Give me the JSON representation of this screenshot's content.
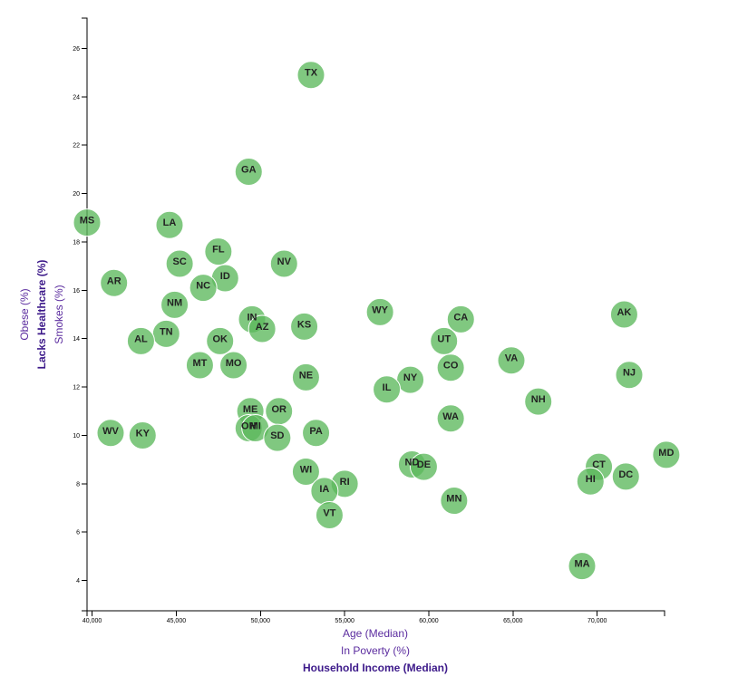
{
  "chart_data": {
    "type": "scatter",
    "x_label_options": [
      {
        "label": "Age (Median)",
        "active": false
      },
      {
        "label": "In Poverty (%)",
        "active": false
      },
      {
        "label": "Household Income (Median)",
        "active": true
      }
    ],
    "y_label_options": [
      {
        "label": "Obese (%)",
        "active": false
      },
      {
        "label": "Smokes (%)",
        "active": false
      },
      {
        "label": "Lacks Healthcare (%)",
        "active": true
      }
    ],
    "xlim": [
      39700,
      74000
    ],
    "ylim": [
      2.75,
      27.25
    ],
    "x_ticks": [
      {
        "value": 40000,
        "label": "40,000"
      },
      {
        "value": 45000,
        "label": "45,000"
      },
      {
        "value": 50000,
        "label": "50,000"
      },
      {
        "value": 55000,
        "label": "55,000"
      },
      {
        "value": 60000,
        "label": "60,000"
      },
      {
        "value": 65000,
        "label": "65,000"
      },
      {
        "value": 70000,
        "label": "70,000"
      }
    ],
    "y_ticks": [
      {
        "value": 4,
        "label": "4"
      },
      {
        "value": 6,
        "label": "6"
      },
      {
        "value": 8,
        "label": "8"
      },
      {
        "value": 10,
        "label": "10"
      },
      {
        "value": 12,
        "label": "12"
      },
      {
        "value": 14,
        "label": "14"
      },
      {
        "value": 16,
        "label": "16"
      },
      {
        "value": 18,
        "label": "18"
      },
      {
        "value": 20,
        "label": "20"
      },
      {
        "value": 22,
        "label": "22"
      },
      {
        "value": 24,
        "label": "24"
      },
      {
        "value": 26,
        "label": "26"
      }
    ],
    "marker_color": "#5cb85c",
    "points": [
      {
        "abbr": "TX",
        "x": 53000,
        "y": 24.9
      },
      {
        "abbr": "GA",
        "x": 49300,
        "y": 20.9
      },
      {
        "abbr": "MS",
        "x": 39700,
        "y": 18.8
      },
      {
        "abbr": "LA",
        "x": 44600,
        "y": 18.7
      },
      {
        "abbr": "FL",
        "x": 47500,
        "y": 17.6
      },
      {
        "abbr": "SC",
        "x": 45200,
        "y": 17.1
      },
      {
        "abbr": "NV",
        "x": 51400,
        "y": 17.1
      },
      {
        "abbr": "AR",
        "x": 41300,
        "y": 16.3
      },
      {
        "abbr": "ID",
        "x": 47900,
        "y": 16.5
      },
      {
        "abbr": "NC",
        "x": 46600,
        "y": 16.1
      },
      {
        "abbr": "NM",
        "x": 44900,
        "y": 15.4
      },
      {
        "abbr": "WY",
        "x": 57100,
        "y": 15.1
      },
      {
        "abbr": "AK",
        "x": 71600,
        "y": 15.0
      },
      {
        "abbr": "IN",
        "x": 49500,
        "y": 14.8
      },
      {
        "abbr": "CA",
        "x": 61900,
        "y": 14.8
      },
      {
        "abbr": "AZ",
        "x": 50100,
        "y": 14.4
      },
      {
        "abbr": "KS",
        "x": 52600,
        "y": 14.5
      },
      {
        "abbr": "TN",
        "x": 44400,
        "y": 14.2
      },
      {
        "abbr": "AL",
        "x": 42900,
        "y": 13.9
      },
      {
        "abbr": "OK",
        "x": 47600,
        "y": 13.9
      },
      {
        "abbr": "UT",
        "x": 60900,
        "y": 13.9
      },
      {
        "abbr": "VA",
        "x": 64900,
        "y": 13.1
      },
      {
        "abbr": "MT",
        "x": 46400,
        "y": 12.9
      },
      {
        "abbr": "MO",
        "x": 48400,
        "y": 12.9
      },
      {
        "abbr": "CO",
        "x": 61300,
        "y": 12.8
      },
      {
        "abbr": "NJ",
        "x": 71900,
        "y": 12.5
      },
      {
        "abbr": "NE",
        "x": 52700,
        "y": 12.4
      },
      {
        "abbr": "NY",
        "x": 58900,
        "y": 12.3
      },
      {
        "abbr": "IL",
        "x": 57500,
        "y": 11.9
      },
      {
        "abbr": "NH",
        "x": 66500,
        "y": 11.4
      },
      {
        "abbr": "ME",
        "x": 49400,
        "y": 11.0
      },
      {
        "abbr": "OR",
        "x": 51100,
        "y": 11.0
      },
      {
        "abbr": "WA",
        "x": 61300,
        "y": 10.7
      },
      {
        "abbr": "OH",
        "x": 49300,
        "y": 10.3
      },
      {
        "abbr": "MI",
        "x": 49700,
        "y": 10.3
      },
      {
        "abbr": "WV",
        "x": 41100,
        "y": 10.1
      },
      {
        "abbr": "KY",
        "x": 43000,
        "y": 10.0
      },
      {
        "abbr": "PA",
        "x": 53300,
        "y": 10.1
      },
      {
        "abbr": "SD",
        "x": 51000,
        "y": 9.9
      },
      {
        "abbr": "MD",
        "x": 74100,
        "y": 9.2
      },
      {
        "abbr": "ND",
        "x": 59000,
        "y": 8.8
      },
      {
        "abbr": "DE",
        "x": 59700,
        "y": 8.7
      },
      {
        "abbr": "CT",
        "x": 70100,
        "y": 8.7
      },
      {
        "abbr": "WI",
        "x": 52700,
        "y": 8.5
      },
      {
        "abbr": "DC",
        "x": 71700,
        "y": 8.3
      },
      {
        "abbr": "HI",
        "x": 69600,
        "y": 8.1
      },
      {
        "abbr": "RI",
        "x": 55000,
        "y": 8.0
      },
      {
        "abbr": "IA",
        "x": 53800,
        "y": 7.7
      },
      {
        "abbr": "MN",
        "x": 61500,
        "y": 7.3
      },
      {
        "abbr": "VT",
        "x": 54100,
        "y": 6.7
      },
      {
        "abbr": "MA",
        "x": 69100,
        "y": 4.6
      }
    ]
  }
}
